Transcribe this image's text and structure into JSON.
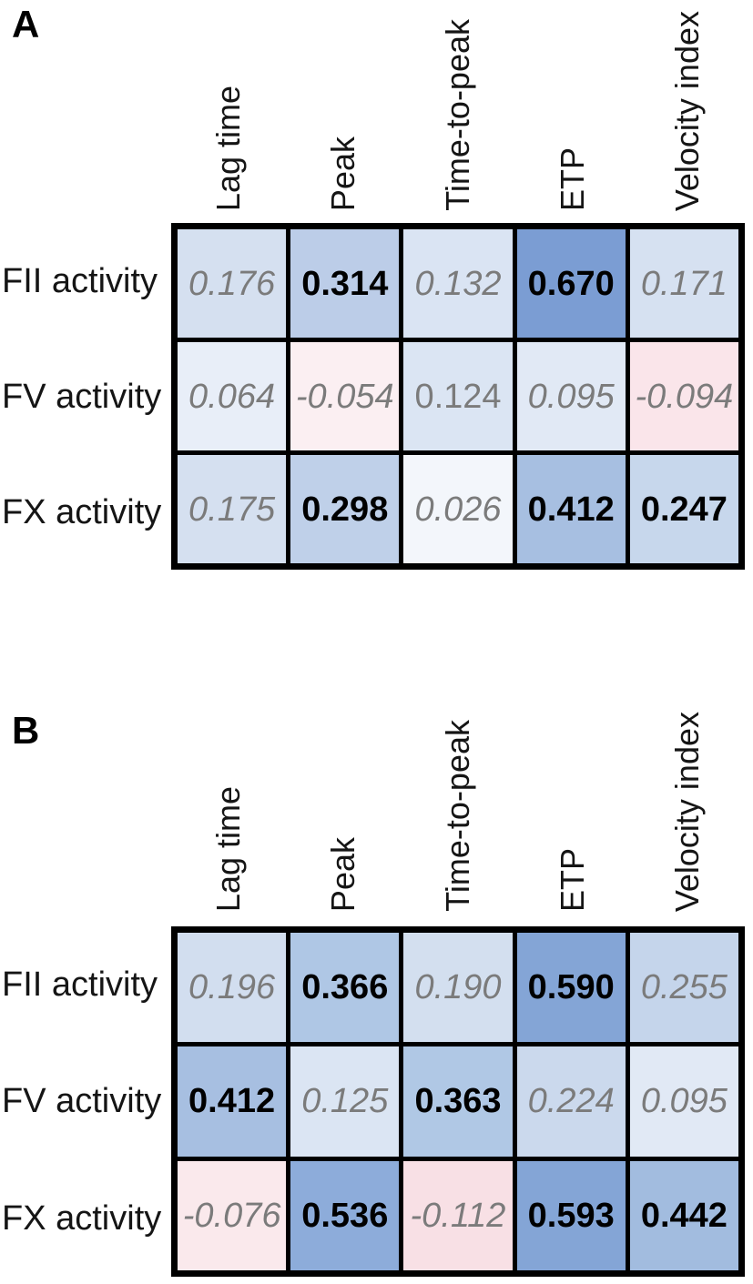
{
  "figure_type": "correlation-heatmap-figure",
  "panels": [
    {
      "label": "A",
      "columns": [
        "Lag time",
        "Peak",
        "Time-to-peak",
        "ETP",
        "Velocity index"
      ],
      "rows": [
        {
          "label": "FII activity",
          "cells": [
            {
              "value": "0.176",
              "style": "italic",
              "bg": "#D5E0F0"
            },
            {
              "value": "0.314",
              "style": "bold",
              "bg": "#BCCDE8"
            },
            {
              "value": "0.132",
              "style": "italic",
              "bg": "#DAE4F3"
            },
            {
              "value": "0.670",
              "style": "bold",
              "bg": "#7B9DD3"
            },
            {
              "value": "0.171",
              "style": "italic",
              "bg": "#D6E1F1"
            }
          ]
        },
        {
          "label": "FV activity",
          "cells": [
            {
              "value": "0.064",
              "style": "italic",
              "bg": "#E8EEF8"
            },
            {
              "value": "-0.054",
              "style": "italic",
              "bg": "#FBEFF2"
            },
            {
              "value": "0.124",
              "style": "plain",
              "bg": "#DBE5F3"
            },
            {
              "value": "0.095",
              "style": "italic",
              "bg": "#E1E9F5"
            },
            {
              "value": "-0.094",
              "style": "italic",
              "bg": "#FAE5EA"
            }
          ]
        },
        {
          "label": "FX activity",
          "cells": [
            {
              "value": "0.175",
              "style": "italic",
              "bg": "#D5E0F0"
            },
            {
              "value": "0.298",
              "style": "bold",
              "bg": "#BFD0E9"
            },
            {
              "value": "0.026",
              "style": "italic",
              "bg": "#F3F6FB"
            },
            {
              "value": "0.412",
              "style": "bold",
              "bg": "#A7BFE1"
            },
            {
              "value": "0.247",
              "style": "bold",
              "bg": "#C7D7EC"
            }
          ]
        }
      ]
    },
    {
      "label": "B",
      "columns": [
        "Lag time",
        "Peak",
        "Time-to-peak",
        "ETP",
        "Velocity index"
      ],
      "rows": [
        {
          "label": "FII activity",
          "cells": [
            {
              "value": "0.196",
              "style": "italic",
              "bg": "#D2DEEF"
            },
            {
              "value": "0.366",
              "style": "bold",
              "bg": "#AFC7E5"
            },
            {
              "value": "0.190",
              "style": "italic",
              "bg": "#D3DFEF"
            },
            {
              "value": "0.590",
              "style": "bold",
              "bg": "#84A5D6"
            },
            {
              "value": "0.255",
              "style": "italic",
              "bg": "#C5D5EB"
            }
          ]
        },
        {
          "label": "FV activity",
          "cells": [
            {
              "value": "0.412",
              "style": "bold",
              "bg": "#A7BFE1"
            },
            {
              "value": "0.125",
              "style": "italic",
              "bg": "#DBE5F3"
            },
            {
              "value": "0.363",
              "style": "bold",
              "bg": "#B0C8E5"
            },
            {
              "value": "0.224",
              "style": "italic",
              "bg": "#CBD9ED"
            },
            {
              "value": "0.095",
              "style": "italic",
              "bg": "#E1E9F5"
            }
          ]
        },
        {
          "label": "FX activity",
          "cells": [
            {
              "value": "-0.076",
              "style": "italic",
              "bg": "#FAE9EC"
            },
            {
              "value": "0.536",
              "style": "bold",
              "bg": "#8DACDA"
            },
            {
              "value": "-0.112",
              "style": "italic",
              "bg": "#F8E0E5"
            },
            {
              "value": "0.593",
              "style": "bold",
              "bg": "#84A5D6"
            },
            {
              "value": "0.442",
              "style": "bold",
              "bg": "#A2BCDF"
            }
          ]
        }
      ]
    }
  ],
  "chart_data": [
    {
      "type": "heatmap",
      "title": "A",
      "columns": [
        "Lag time",
        "Peak",
        "Time-to-peak",
        "ETP",
        "Velocity index"
      ],
      "rows": [
        "FII activity",
        "FV activity",
        "FX activity"
      ],
      "values": [
        [
          0.176,
          0.314,
          0.132,
          0.67,
          0.171
        ],
        [
          0.064,
          -0.054,
          0.124,
          0.095,
          -0.094
        ],
        [
          0.175,
          0.298,
          0.026,
          0.412,
          0.247
        ]
      ],
      "significant_bold": [
        [
          false,
          true,
          false,
          true,
          false
        ],
        [
          false,
          false,
          false,
          false,
          false
        ],
        [
          false,
          true,
          false,
          true,
          true
        ]
      ],
      "colormap": "diverging blue (positive) to pink (negative)",
      "positive_color": "#7B9DD3",
      "negative_color": "#F8DEE4",
      "grid": true,
      "legend": "none"
    },
    {
      "type": "heatmap",
      "title": "B",
      "columns": [
        "Lag time",
        "Peak",
        "Time-to-peak",
        "ETP",
        "Velocity index"
      ],
      "rows": [
        "FII activity",
        "FV activity",
        "FX activity"
      ],
      "values": [
        [
          0.196,
          0.366,
          0.19,
          0.59,
          0.255
        ],
        [
          0.412,
          0.125,
          0.363,
          0.224,
          0.095
        ],
        [
          -0.076,
          0.536,
          -0.112,
          0.593,
          0.442
        ]
      ],
      "significant_bold": [
        [
          false,
          true,
          false,
          true,
          false
        ],
        [
          true,
          false,
          true,
          false,
          false
        ],
        [
          false,
          true,
          false,
          true,
          true
        ]
      ],
      "colormap": "diverging blue (positive) to pink (negative)",
      "positive_color": "#7B9DD3",
      "negative_color": "#F8DEE4",
      "grid": true,
      "legend": "none"
    }
  ]
}
